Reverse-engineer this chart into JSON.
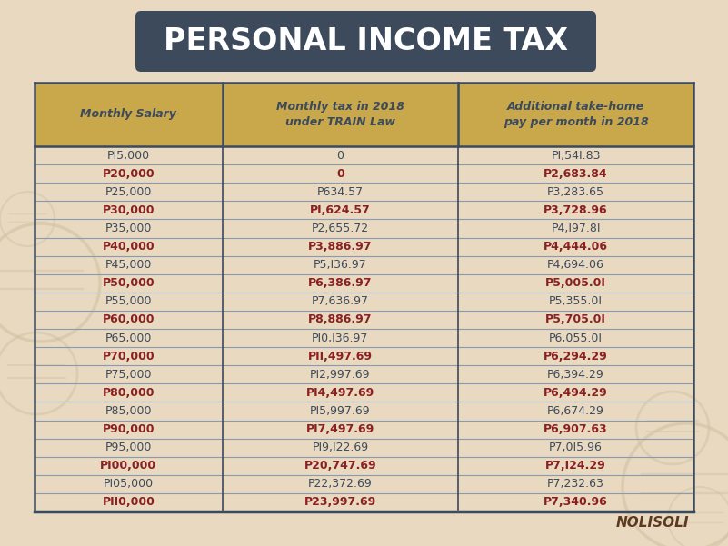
{
  "title": "PERSONAL INCOME TAX",
  "title_bg_color": "#3d4a5c",
  "title_text_color": "#ffffff",
  "bg_color": "#e8d9c0",
  "header_bg_color": "#c8a84b",
  "header_text_color": "#3d4a5c",
  "col_line_color": "#3d4a5c",
  "row_line_color": "#8a9ab0",
  "headers": [
    "Monthly Salary",
    "Monthly tax in 2018\nunder TRAIN Law",
    "Additional take-home\npay per month in 2018"
  ],
  "rows": [
    [
      "PI5,000",
      "0",
      "PI,54I.83"
    ],
    [
      "P20,000",
      "0",
      "P2,683.84"
    ],
    [
      "P25,000",
      "P634.57",
      "P3,283.65"
    ],
    [
      "P30,000",
      "PI,624.57",
      "P3,728.96"
    ],
    [
      "P35,000",
      "P2,655.72",
      "P4,I97.8I"
    ],
    [
      "P40,000",
      "P3,886.97",
      "P4,444.06"
    ],
    [
      "P45,000",
      "P5,I36.97",
      "P4,694.06"
    ],
    [
      "P50,000",
      "P6,386.97",
      "P5,005.0I"
    ],
    [
      "P55,000",
      "P7,636.97",
      "P5,355.0I"
    ],
    [
      "P60,000",
      "P8,886.97",
      "P5,705.0I"
    ],
    [
      "P65,000",
      "PI0,I36.97",
      "P6,055.0I"
    ],
    [
      "P70,000",
      "PII,497.69",
      "P6,294.29"
    ],
    [
      "P75,000",
      "PI2,997.69",
      "P6,394.29"
    ],
    [
      "P80,000",
      "PI4,497.69",
      "P6,494.29"
    ],
    [
      "P85,000",
      "PI5,997.69",
      "P6,674.29"
    ],
    [
      "P90,000",
      "PI7,497.69",
      "P6,907.63"
    ],
    [
      "P95,000",
      "PI9,I22.69",
      "P7,0I5.96"
    ],
    [
      "PI00,000",
      "P20,747.69",
      "P7,I24.29"
    ],
    [
      "PI05,000",
      "P22,372.69",
      "P7,232.63"
    ],
    [
      "PII0,000",
      "P23,997.69",
      "P7,340.96"
    ]
  ],
  "highlighted_rows": [
    1,
    3,
    5,
    7,
    9,
    11,
    13,
    15,
    17,
    19
  ],
  "highlight_color": "#8b2020",
  "normal_color": "#3d4a5c",
  "nolisoli_color": "#5c3a1e",
  "watermark_color": "#cdbfa0",
  "fig_w": 8.01,
  "fig_h": 6.01,
  "dpi": 100
}
